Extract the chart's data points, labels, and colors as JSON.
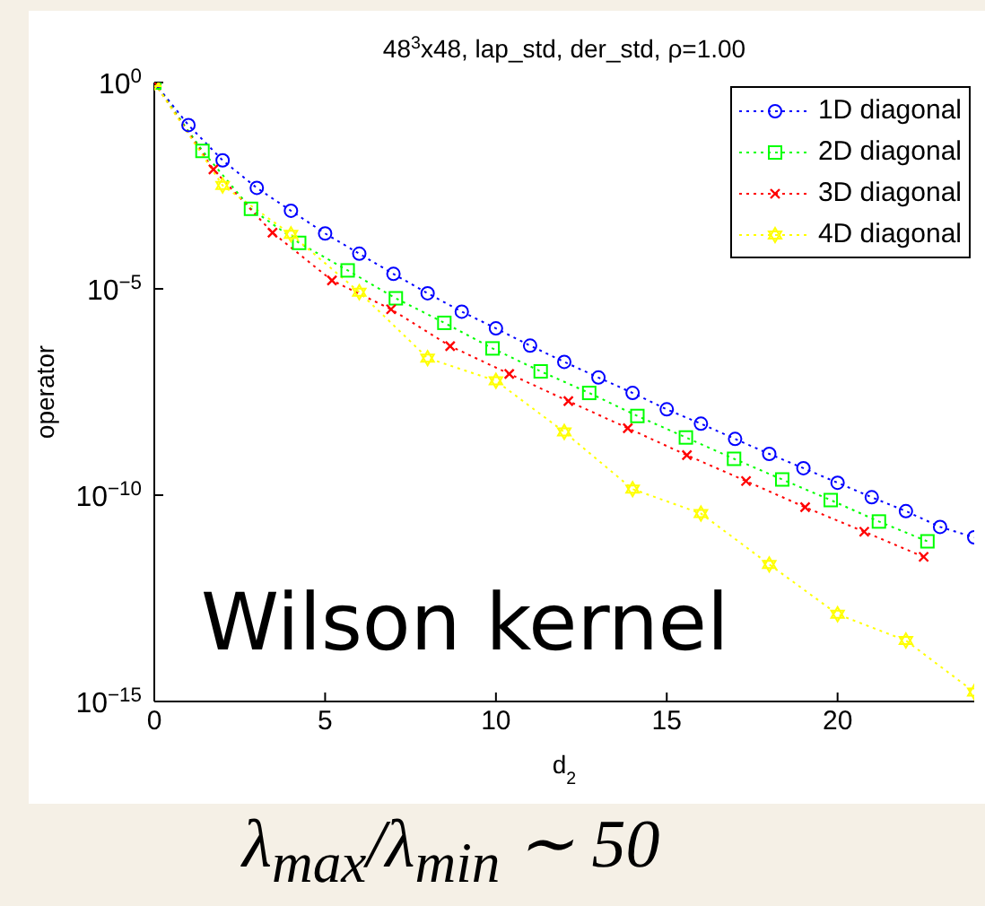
{
  "chart_data": {
    "type": "line",
    "title": "48$^{3}$x48, lap_std, der_std, ρ=1.00",
    "xlabel": "d$_{2}$",
    "ylabel": "operator",
    "annotations": [
      "Wilson kernel",
      "λ$_{max}$/λ$_{min}$ ∼ 50"
    ],
    "log": "y",
    "grid": false,
    "legend": "top right",
    "line_style": "dotted",
    "xlim": [
      0,
      24
    ],
    "xticks": [
      0,
      5,
      10,
      15,
      20
    ],
    "ylim": [
      1e-15,
      1
    ],
    "yticks": [
      {
        "value": 1,
        "label": "10$^{0}$"
      },
      {
        "value": 1e-05,
        "label": "10$^{−5}$"
      },
      {
        "value": 1e-10,
        "label": "10$^{−10}$"
      },
      {
        "value": 1e-15,
        "label": "10$^{−15}$"
      }
    ],
    "series": [
      {
        "name": "1D diagonal",
        "color": "#0000ff",
        "marker": "circle",
        "x": [
          0,
          1,
          2,
          3,
          4,
          5,
          6,
          7,
          8,
          9,
          10,
          11,
          12,
          13,
          14,
          15,
          16,
          17,
          18,
          19,
          20,
          21,
          22,
          23,
          24
        ],
        "values": [
          1,
          0.093,
          0.013,
          0.0028,
          0.00078,
          0.00022,
          7.1e-05,
          2.3e-05,
          7.8e-06,
          2.8e-06,
          1.1e-06,
          4.2e-07,
          1.7e-07,
          7.1e-08,
          3e-08,
          1.2e-08,
          5.4e-09,
          2.3e-09,
          1e-09,
          4.5e-10,
          2e-10,
          8.9e-11,
          4.1e-11,
          1.7e-11,
          9.5e-12
        ]
      },
      {
        "name": "2D diagonal",
        "color": "#00ff00",
        "marker": "square",
        "x": [
          0,
          1.41,
          2.83,
          4.24,
          5.66,
          7.07,
          8.49,
          9.9,
          11.31,
          12.73,
          14.14,
          15.56,
          16.97,
          18.38,
          19.8,
          21.21,
          22.63
        ],
        "values": [
          1,
          0.022,
          0.00087,
          0.00013,
          2.8e-05,
          5.9e-06,
          1.5e-06,
          3.6e-07,
          1e-07,
          3e-08,
          8.3e-09,
          2.5e-09,
          7.6e-10,
          2.4e-10,
          7.6e-11,
          2.3e-11,
          7.6e-12
        ]
      },
      {
        "name": "3D diagonal",
        "color": "#ff0000",
        "marker": "cross",
        "x": [
          0,
          1.73,
          3.46,
          5.2,
          6.93,
          8.66,
          10.39,
          12.12,
          13.86,
          15.59,
          17.32,
          19.05,
          20.78,
          22.52
        ],
        "values": [
          1,
          0.0078,
          0.00023,
          1.6e-05,
          3.2e-06,
          4.1e-07,
          8.7e-08,
          1.9e-08,
          4.2e-09,
          9.3e-10,
          2.2e-10,
          5.1e-11,
          1.3e-11,
          3.2e-12
        ]
      },
      {
        "name": "4D diagonal",
        "color": "#ffff00",
        "marker": "star",
        "x": [
          0,
          2,
          4,
          6,
          8,
          10,
          12,
          14,
          16,
          18,
          20,
          22,
          24
        ],
        "values": [
          1,
          0.0032,
          0.00021,
          8.3e-06,
          2.1e-07,
          5.9e-08,
          3.4e-09,
          1.4e-10,
          3.6e-11,
          2.1e-12,
          1.3e-13,
          3e-14,
          1.7e-15
        ]
      }
    ]
  }
}
